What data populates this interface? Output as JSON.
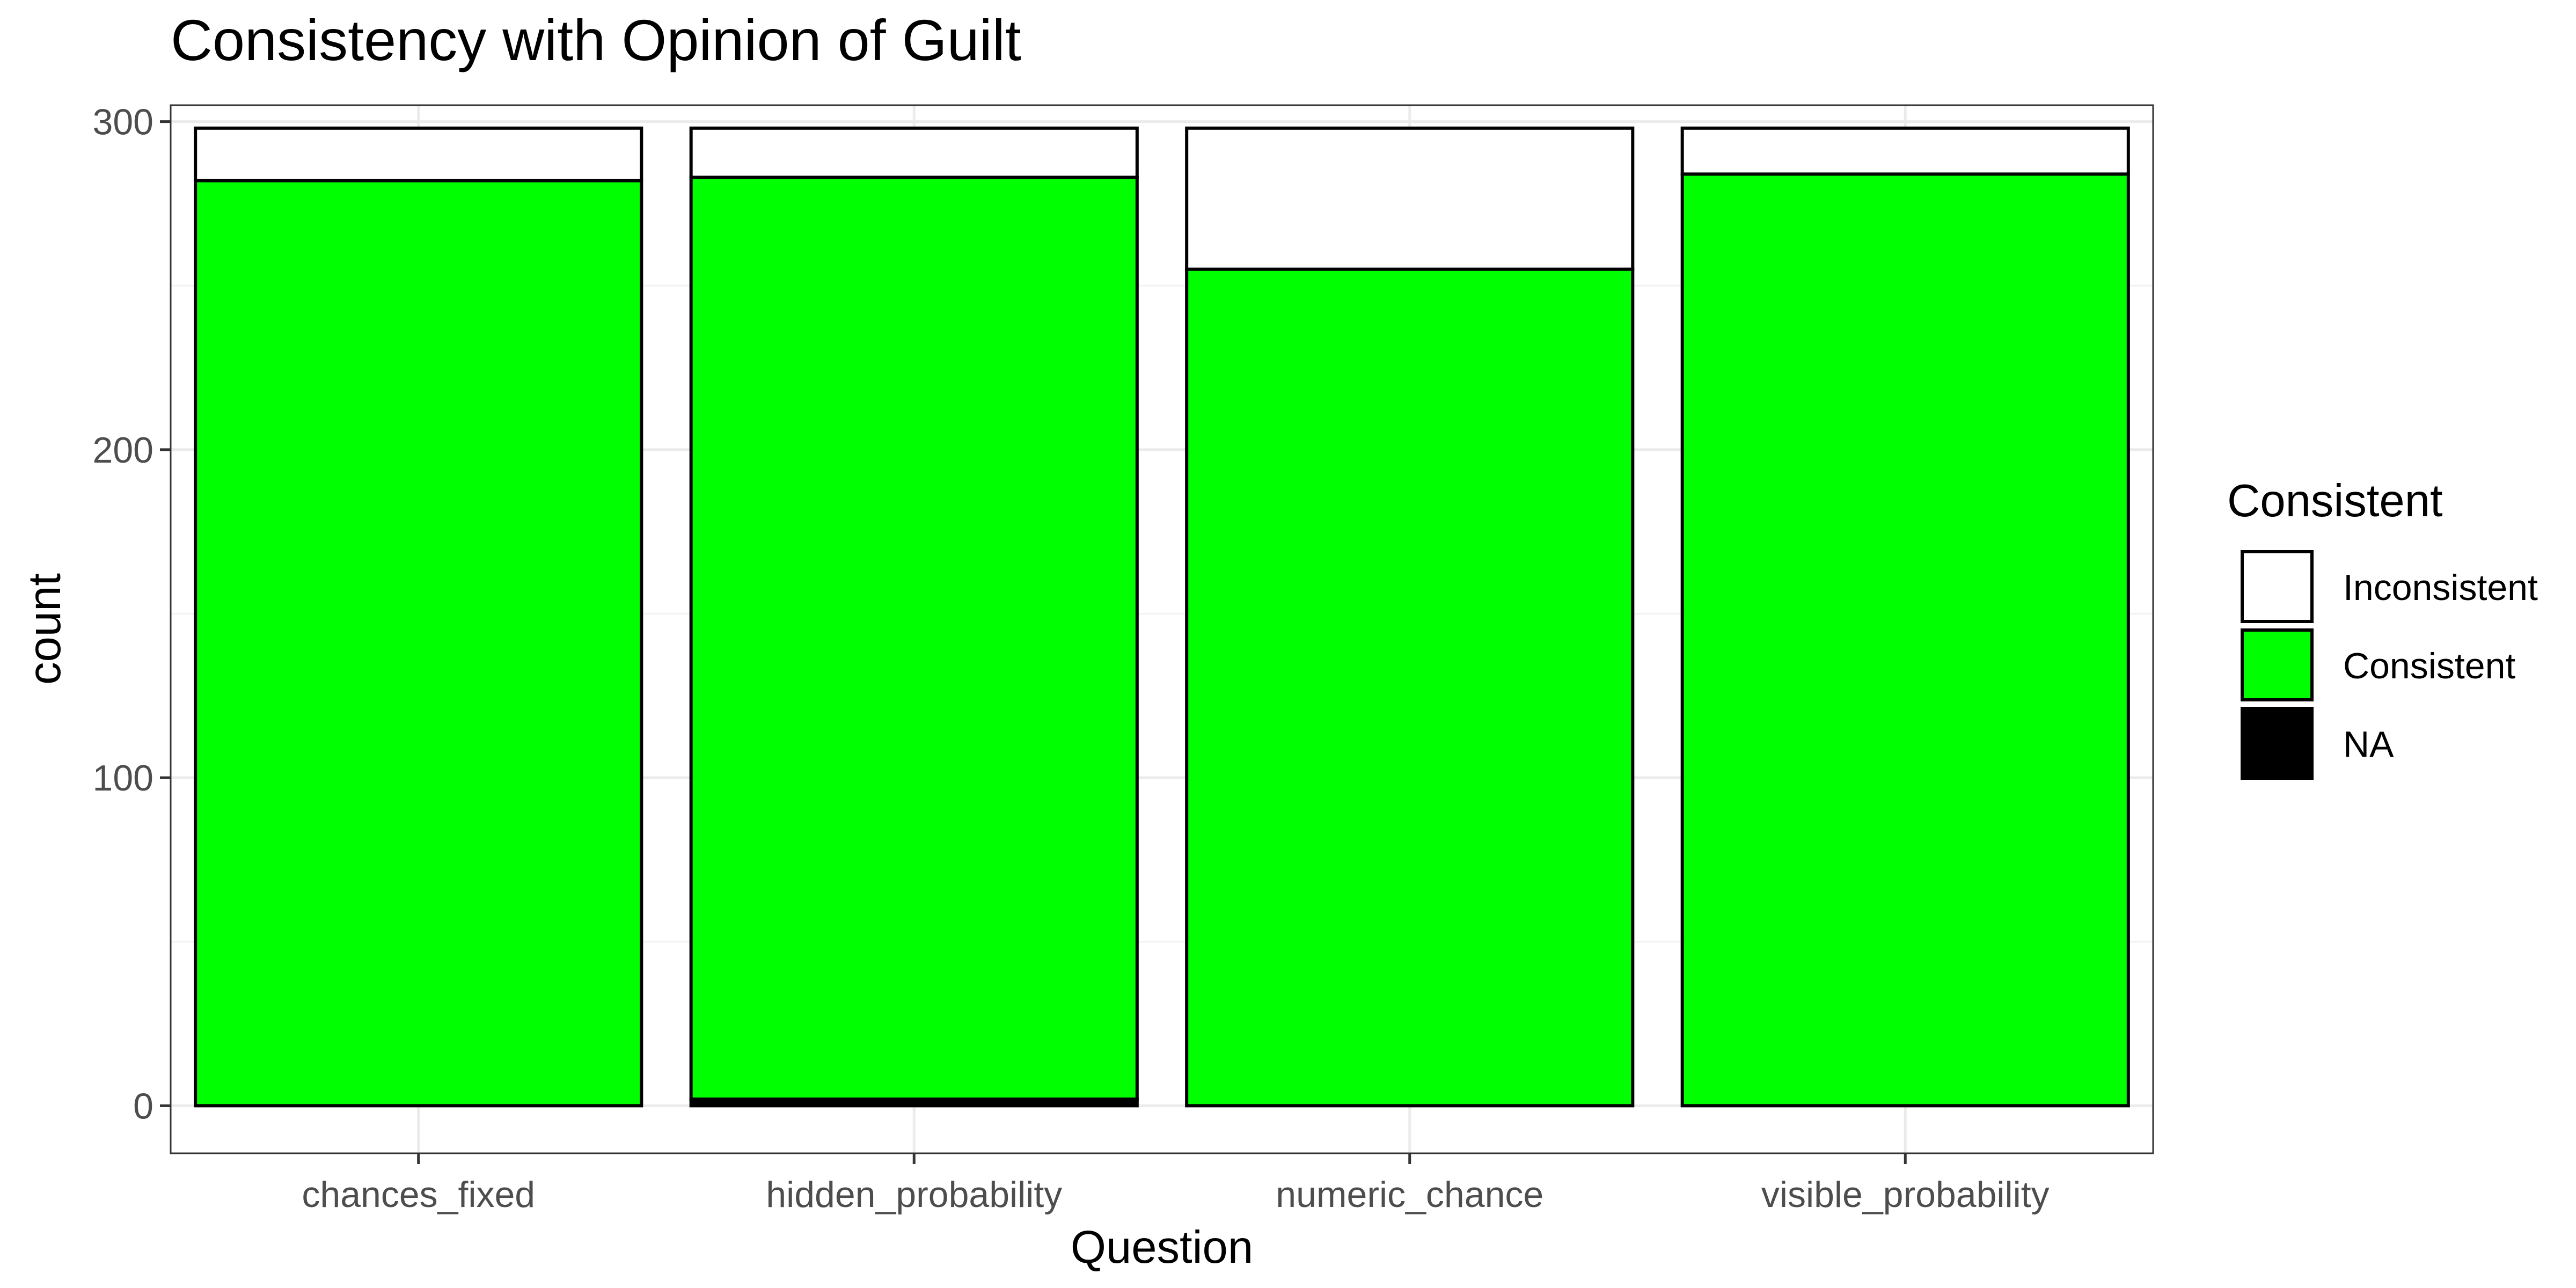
{
  "chart_data": {
    "type": "bar",
    "stacked": true,
    "title": "Consistency with Opinion of Guilt",
    "xlabel": "Question",
    "ylabel": "count",
    "categories": [
      "chances_fixed",
      "hidden_probability",
      "numeric_chance",
      "visible_probability"
    ],
    "ylim": [
      -14.5,
      305
    ],
    "yticks": [
      0,
      100,
      200,
      300
    ],
    "grid": true,
    "legend": {
      "title": "Consistent",
      "position": "right"
    },
    "series": [
      {
        "name": "NA",
        "color": "#000000",
        "values": [
          0,
          2,
          0,
          0
        ]
      },
      {
        "name": "Consistent",
        "color": "#00ff00",
        "values": [
          282,
          281,
          255,
          284
        ]
      },
      {
        "name": "Inconsistent",
        "color": "#ffffff",
        "values": [
          16,
          15,
          43,
          14
        ]
      }
    ],
    "legend_order": [
      "Inconsistent",
      "Consistent",
      "NA"
    ]
  }
}
